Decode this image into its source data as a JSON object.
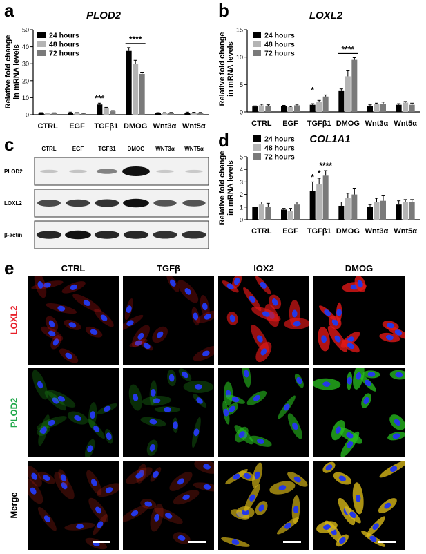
{
  "panels": {
    "a": "a",
    "b": "b",
    "c": "c",
    "d": "d",
    "e": "e"
  },
  "colors": {
    "h24": "#000000",
    "h48": "#b4b4b4",
    "h72": "#7a7a7a"
  },
  "chart_data": [
    {
      "id": "a",
      "type": "bar",
      "title": "PLOD2",
      "ylabel": "Relative fold change in mRNA levels",
      "ylabel_lines": [
        "Relative fold change",
        "in mRNA levels"
      ],
      "ylim": [
        0,
        50
      ],
      "yticks": [
        0,
        10,
        20,
        30,
        40,
        50
      ],
      "categories": [
        "CTRL",
        "EGF",
        "TGFβ1",
        "DMOG",
        "Wnt3α",
        "Wnt5α"
      ],
      "series": [
        {
          "name": "24 hours",
          "values": [
            1,
            1.2,
            6,
            37.5,
            1,
            1.2
          ],
          "err": [
            0.2,
            0.3,
            0.8,
            2,
            0.2,
            0.3
          ]
        },
        {
          "name": "48 hours",
          "values": [
            0.8,
            0.9,
            3.8,
            30,
            1,
            1.1
          ],
          "err": [
            0.2,
            0.3,
            0.5,
            2,
            0.2,
            0.3
          ]
        },
        {
          "name": "72 hours",
          "values": [
            0.9,
            0.7,
            2,
            24,
            1.1,
            1
          ],
          "err": [
            0.2,
            0.2,
            0.4,
            1,
            0.2,
            0.3
          ]
        }
      ],
      "annotations": [
        {
          "category": 2,
          "text": "***"
        },
        {
          "category": 3,
          "text": "****",
          "bracket": true
        }
      ]
    },
    {
      "id": "b",
      "type": "bar",
      "title": "LOXL2",
      "ylabel": "Relative fold change in mRNA levels",
      "ylabel_lines": [
        "Relative fold change",
        "in mRNA levels"
      ],
      "ylim": [
        0,
        15
      ],
      "yticks": [
        0,
        5,
        10,
        15
      ],
      "categories": [
        "CTRL",
        "EGF",
        "TGFβ1",
        "DMOG",
        "Wnt3α",
        "Wnt5α"
      ],
      "series": [
        {
          "name": "24 hours",
          "values": [
            1,
            1.1,
            1.3,
            3.8,
            1.1,
            1.3
          ],
          "err": [
            0.1,
            0.1,
            0.2,
            0.4,
            0.2,
            0.2
          ]
        },
        {
          "name": "48 hours",
          "values": [
            1.2,
            0.9,
            1.9,
            6.5,
            1.4,
            1.7
          ],
          "err": [
            0.2,
            0.1,
            0.2,
            1.0,
            0.2,
            0.2
          ]
        },
        {
          "name": "72 hours",
          "values": [
            1.1,
            1.2,
            2.8,
            9.5,
            1.5,
            1.3
          ],
          "err": [
            0.2,
            0.2,
            0.3,
            0.4,
            0.3,
            0.3
          ]
        }
      ],
      "annotations": [
        {
          "category": 2,
          "text": "*"
        },
        {
          "category": 3,
          "text": "****",
          "bracket": true
        }
      ]
    },
    {
      "id": "d",
      "type": "bar",
      "title": "COL1A1",
      "ylabel": "Relative fold change in mRNA levels",
      "ylabel_lines": [
        "Relative fold change",
        "in mRNA levels"
      ],
      "ylim": [
        0,
        5
      ],
      "yticks": [
        0,
        1,
        2,
        3,
        4,
        5
      ],
      "categories": [
        "CTRL",
        "EGF",
        "TGFβ1",
        "DMOG",
        "Wnt3α",
        "Wnt5α"
      ],
      "series": [
        {
          "name": "24 hours",
          "values": [
            1,
            0.8,
            2.3,
            1.1,
            1,
            1.2
          ],
          "err": [
            0,
            0.1,
            0.7,
            0.3,
            0.2,
            0.3
          ]
        },
        {
          "name": "48 hours",
          "values": [
            1.2,
            0.7,
            2.8,
            1.7,
            1.4,
            1.4
          ],
          "err": [
            0.2,
            0.2,
            0.5,
            0.4,
            0.3,
            0.2
          ]
        },
        {
          "name": "72 hours",
          "values": [
            1,
            1.2,
            3.5,
            2,
            1.5,
            1.4
          ],
          "err": [
            0.3,
            0.2,
            0.4,
            0.5,
            0.4,
            0.2
          ]
        }
      ],
      "annotations": [
        {
          "category": 2,
          "series": 0,
          "text": "*"
        },
        {
          "category": 2,
          "series": 1,
          "text": "*"
        },
        {
          "category": 2,
          "series": 2,
          "text": "****"
        }
      ]
    }
  ],
  "blot": {
    "lanes": [
      "CTRL",
      "EGF",
      "TGFβ1",
      "DMOG",
      "WNT3α",
      "WNT5α"
    ],
    "rows": [
      {
        "label": "PLOD2",
        "intensity": [
          0.05,
          0.05,
          0.35,
          1.0,
          0.03,
          0.03
        ]
      },
      {
        "label": "LOXL2",
        "intensity": [
          0.6,
          0.65,
          0.7,
          0.85,
          0.55,
          0.55
        ]
      },
      {
        "label": "β-actin",
        "intensity": [
          0.75,
          0.85,
          0.75,
          0.75,
          0.7,
          0.7
        ]
      }
    ]
  },
  "micrographs": {
    "columns": [
      "CTRL",
      "TGFβ",
      "IOX2",
      "DMOG"
    ],
    "rows": [
      {
        "label": "LOXL2",
        "color": "#e8202a"
      },
      {
        "label": "PLOD2",
        "color": "#1fa84a"
      },
      {
        "label": "Merge",
        "color": "#000000"
      }
    ],
    "signal": [
      [
        0.15,
        0.12,
        0.7,
        0.85
      ],
      [
        0.1,
        0.12,
        0.6,
        0.8
      ],
      [
        0.15,
        0.15,
        0.7,
        0.85
      ]
    ]
  }
}
